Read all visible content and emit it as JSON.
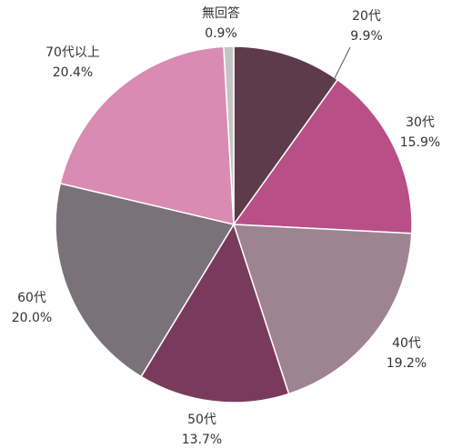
{
  "chart_data": {
    "type": "pie",
    "categories": [
      "20代",
      "30代",
      "40代",
      "50代",
      "60代",
      "70代以上",
      "無回答"
    ],
    "values": [
      9.9,
      15.9,
      19.2,
      13.7,
      20.0,
      20.4,
      0.9
    ],
    "value_labels": [
      "9.9%",
      "15.9%",
      "19.2%",
      "13.7%",
      "20.0%",
      "20.4%",
      "0.9%"
    ],
    "colors": [
      "#5e3a4a",
      "#b84f86",
      "#9e8490",
      "#7a3a5c",
      "#7a7278",
      "#d98bb2",
      "#c4c4c4"
    ]
  }
}
